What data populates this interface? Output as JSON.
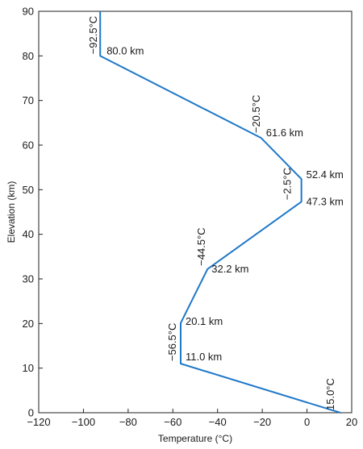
{
  "chart_data": {
    "type": "line",
    "xlabel": "Temperature (°C)",
    "ylabel": "Elevation (km)",
    "xlim": [
      -120,
      20
    ],
    "ylim": [
      0,
      90
    ],
    "xticks": [
      -120,
      -100,
      -80,
      -60,
      -40,
      -20,
      0,
      20
    ],
    "yticks": [
      0,
      10,
      20,
      30,
      40,
      50,
      60,
      70,
      80,
      90
    ],
    "grid": false,
    "line_color": "#1f78c8",
    "series": [
      {
        "x": [
          15.0,
          -56.5,
          -56.5,
          -44.5,
          -2.5,
          -2.5,
          -20.5,
          -92.5,
          -92.5
        ],
        "y": [
          0,
          11.0,
          20.1,
          32.2,
          47.3,
          52.4,
          61.6,
          80.0,
          90
        ]
      }
    ],
    "elevation_labels": [
      {
        "text": "80.0 km",
        "x": -92.5,
        "y": 80.0
      },
      {
        "text": "61.6 km",
        "x": -20.5,
        "y": 61.6
      },
      {
        "text": "52.4 km",
        "x": -2.5,
        "y": 52.4
      },
      {
        "text": "47.3 km",
        "x": -2.5,
        "y": 47.3
      },
      {
        "text": "32.2 km",
        "x": -44.5,
        "y": 32.2
      },
      {
        "text": "20.1 km",
        "x": -56.5,
        "y": 20.1
      },
      {
        "text": "11.0 km",
        "x": -56.5,
        "y": 11.0
      }
    ],
    "temperature_labels": [
      {
        "text": "−92.5°C",
        "x": -92.5,
        "y": 80.0
      },
      {
        "text": "−20.5°C",
        "x": -20.5,
        "y": 61.6
      },
      {
        "text": "−2.5°C",
        "x": -2.5,
        "y": 47.3
      },
      {
        "text": "−44.5°C",
        "x": -44.5,
        "y": 32.2
      },
      {
        "text": "−56.5°C",
        "x": -56.5,
        "y": 11.0
      },
      {
        "text": "15.0°C",
        "x": 15.0,
        "y": 0
      }
    ]
  }
}
